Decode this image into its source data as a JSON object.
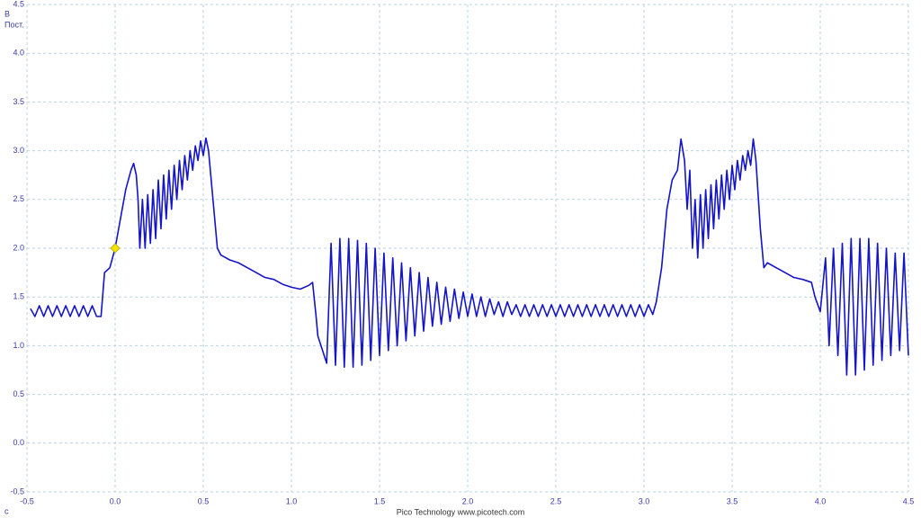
{
  "chart_data": {
    "type": "line",
    "y_unit": "В",
    "coupling": "Пост.",
    "x_unit": "c",
    "footer": "Pico Technology  www.picotech.com",
    "color": "#1414c8",
    "grid": true,
    "xlim": [
      -0.5,
      4.5
    ],
    "ylim": [
      -0.5,
      4.5
    ],
    "xticks": [
      -0.5,
      {
        "value": 0,
        "label": "0.0"
      },
      0.5,
      {
        "value": 1,
        "label": "1.0"
      },
      1.5,
      {
        "value": 2,
        "label": "2.0"
      },
      2.5,
      {
        "value": 3,
        "label": "3.0"
      },
      3.5,
      {
        "value": 4,
        "label": "4.0"
      },
      4.5
    ],
    "yticks": [
      -0.5,
      {
        "value": 0,
        "label": "0.0"
      },
      0.5,
      {
        "value": 1,
        "label": "1.0"
      },
      1.5,
      {
        "value": 2,
        "label": "2.0"
      },
      2.5,
      {
        "value": 3,
        "label": "3.0"
      },
      3.5,
      {
        "value": 4,
        "label": "4.0"
      },
      4.5
    ],
    "trigger": {
      "x": 0,
      "y": 2.0,
      "color": "#f5e400"
    },
    "x": [
      -0.48,
      -0.455,
      -0.43,
      -0.405,
      -0.38,
      -0.355,
      -0.33,
      -0.305,
      -0.28,
      -0.255,
      -0.23,
      -0.205,
      -0.18,
      -0.155,
      -0.13,
      -0.105,
      -0.08,
      -0.06,
      -0.03,
      0,
      0.03,
      0.06,
      0.09,
      0.105,
      0.12,
      0.13,
      0.14,
      0.155,
      0.17,
      0.185,
      0.2,
      0.215,
      0.23,
      0.245,
      0.26,
      0.275,
      0.29,
      0.305,
      0.32,
      0.335,
      0.35,
      0.365,
      0.38,
      0.395,
      0.41,
      0.425,
      0.44,
      0.455,
      0.47,
      0.485,
      0.5,
      0.515,
      0.53,
      0.55,
      0.58,
      0.6,
      0.65,
      0.7,
      0.75,
      0.8,
      0.85,
      0.9,
      0.95,
      1.0,
      1.05,
      1.1,
      1.12,
      1.14,
      1.15,
      1.2,
      1.225,
      1.25,
      1.275,
      1.3,
      1.325,
      1.35,
      1.375,
      1.4,
      1.425,
      1.45,
      1.475,
      1.5,
      1.525,
      1.55,
      1.575,
      1.6,
      1.625,
      1.65,
      1.675,
      1.7,
      1.725,
      1.75,
      1.775,
      1.8,
      1.825,
      1.85,
      1.875,
      1.9,
      1.925,
      1.95,
      1.975,
      2.0,
      2.025,
      2.05,
      2.075,
      2.1,
      2.125,
      2.15,
      2.175,
      2.2,
      2.225,
      2.25,
      2.275,
      2.3,
      2.325,
      2.35,
      2.375,
      2.4,
      2.425,
      2.45,
      2.475,
      2.5,
      2.525,
      2.55,
      2.575,
      2.6,
      2.625,
      2.65,
      2.675,
      2.7,
      2.725,
      2.75,
      2.775,
      2.8,
      2.825,
      2.85,
      2.875,
      2.9,
      2.925,
      2.95,
      2.975,
      3.0,
      3.025,
      3.05,
      3.07,
      3.1,
      3.13,
      3.16,
      3.19,
      3.21,
      3.23,
      3.245,
      3.26,
      3.275,
      3.29,
      3.305,
      3.32,
      3.335,
      3.35,
      3.365,
      3.38,
      3.395,
      3.41,
      3.425,
      3.44,
      3.455,
      3.47,
      3.485,
      3.5,
      3.515,
      3.53,
      3.545,
      3.56,
      3.575,
      3.59,
      3.605,
      3.62,
      3.635,
      3.66,
      3.68,
      3.7,
      3.75,
      3.8,
      3.85,
      3.9,
      3.95,
      3.97,
      4.0,
      4.03,
      4.05,
      4.075,
      4.1,
      4.125,
      4.15,
      4.175,
      4.2,
      4.225,
      4.25,
      4.275,
      4.3,
      4.325,
      4.35,
      4.375,
      4.4,
      4.425,
      4.45,
      4.475,
      4.5
    ],
    "values": [
      1.38,
      1.3,
      1.41,
      1.3,
      1.41,
      1.3,
      1.41,
      1.3,
      1.41,
      1.3,
      1.41,
      1.3,
      1.41,
      1.3,
      1.41,
      1.3,
      1.3,
      1.75,
      1.8,
      2.0,
      2.3,
      2.6,
      2.8,
      2.87,
      2.75,
      2.5,
      2.0,
      2.5,
      2.0,
      2.55,
      2.05,
      2.6,
      2.1,
      2.7,
      2.2,
      2.75,
      2.3,
      2.8,
      2.4,
      2.85,
      2.5,
      2.9,
      2.6,
      2.95,
      2.7,
      3.0,
      2.8,
      3.05,
      2.9,
      3.1,
      2.95,
      3.13,
      3.0,
      2.6,
      2.0,
      1.93,
      1.88,
      1.85,
      1.8,
      1.75,
      1.7,
      1.68,
      1.63,
      1.6,
      1.58,
      1.62,
      1.65,
      1.3,
      1.1,
      0.82,
      2.05,
      0.8,
      2.1,
      0.78,
      2.1,
      0.78,
      2.08,
      0.8,
      2.05,
      0.85,
      2.0,
      0.9,
      1.95,
      0.95,
      1.9,
      1.0,
      1.85,
      1.05,
      1.8,
      1.1,
      1.75,
      1.15,
      1.7,
      1.2,
      1.65,
      1.22,
      1.6,
      1.25,
      1.58,
      1.28,
      1.55,
      1.3,
      1.53,
      1.3,
      1.5,
      1.3,
      1.48,
      1.32,
      1.45,
      1.3,
      1.45,
      1.32,
      1.42,
      1.3,
      1.42,
      1.3,
      1.42,
      1.3,
      1.42,
      1.3,
      1.42,
      1.3,
      1.42,
      1.3,
      1.42,
      1.3,
      1.42,
      1.3,
      1.42,
      1.3,
      1.42,
      1.3,
      1.42,
      1.3,
      1.42,
      1.3,
      1.42,
      1.3,
      1.42,
      1.3,
      1.42,
      1.3,
      1.42,
      1.32,
      1.45,
      1.8,
      2.4,
      2.7,
      2.8,
      3.12,
      2.9,
      2.4,
      2.8,
      2.0,
      2.5,
      1.9,
      2.55,
      2.0,
      2.6,
      2.1,
      2.65,
      2.2,
      2.7,
      2.3,
      2.75,
      2.4,
      2.8,
      2.5,
      2.85,
      2.6,
      2.9,
      2.7,
      2.95,
      2.8,
      3.0,
      2.85,
      3.12,
      2.9,
      2.2,
      1.8,
      1.85,
      1.8,
      1.75,
      1.7,
      1.68,
      1.65,
      1.5,
      1.35,
      1.9,
      1.0,
      2.0,
      0.9,
      2.05,
      0.7,
      2.1,
      0.7,
      2.1,
      0.75,
      2.1,
      0.8,
      2.05,
      0.85,
      2.0,
      0.9,
      1.95,
      0.95,
      1.95,
      0.9
    ]
  }
}
